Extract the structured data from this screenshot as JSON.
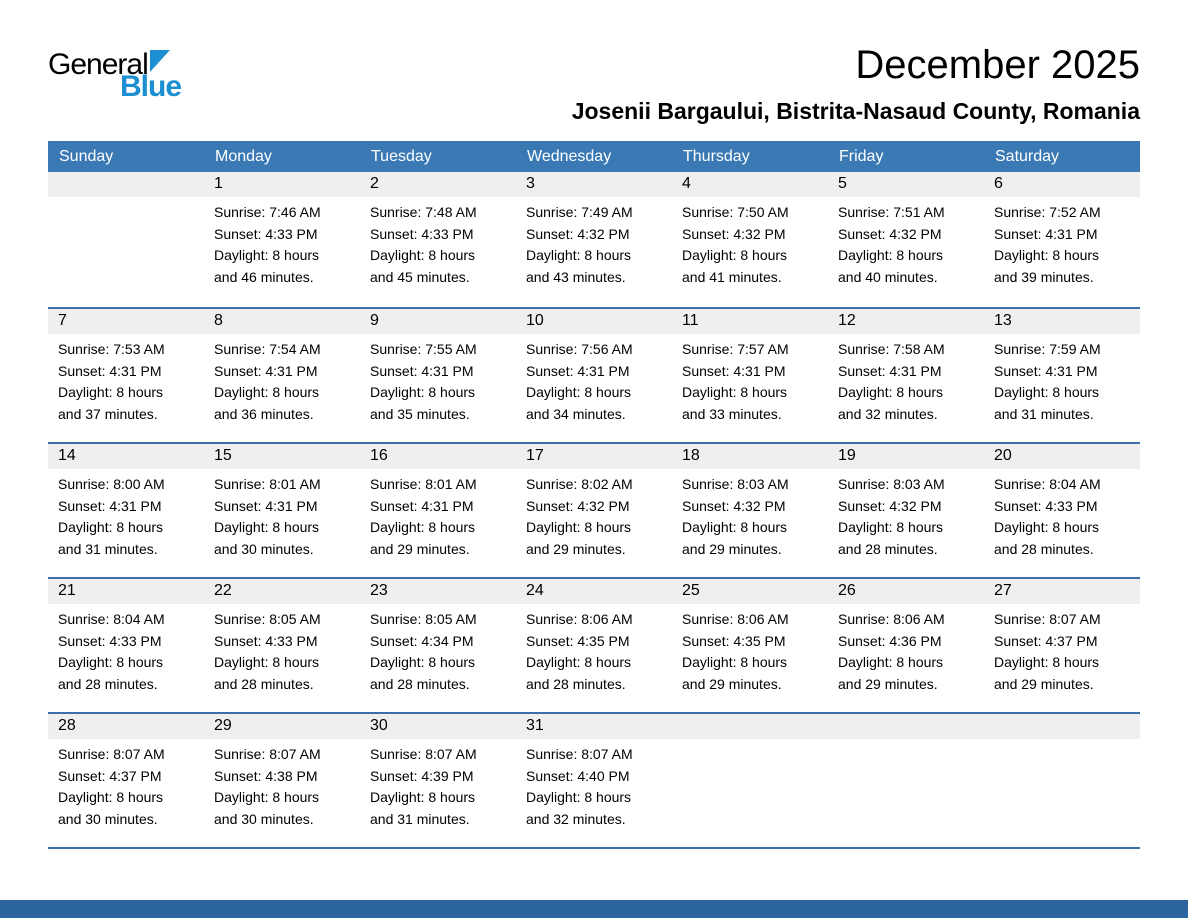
{
  "logo": {
    "general": "General",
    "blue": "Blue"
  },
  "header": {
    "month_title": "December 2025",
    "location": "Josenii Bargaului, Bistrita-Nasaud County, Romania"
  },
  "weekdays": [
    "Sunday",
    "Monday",
    "Tuesday",
    "Wednesday",
    "Thursday",
    "Friday",
    "Saturday"
  ],
  "weeks": [
    [
      {
        "day": "",
        "lines": []
      },
      {
        "day": "1",
        "lines": [
          "Sunrise: 7:46 AM",
          "Sunset: 4:33 PM",
          "Daylight: 8 hours",
          "and 46 minutes."
        ]
      },
      {
        "day": "2",
        "lines": [
          "Sunrise: 7:48 AM",
          "Sunset: 4:33 PM",
          "Daylight: 8 hours",
          "and 45 minutes."
        ]
      },
      {
        "day": "3",
        "lines": [
          "Sunrise: 7:49 AM",
          "Sunset: 4:32 PM",
          "Daylight: 8 hours",
          "and 43 minutes."
        ]
      },
      {
        "day": "4",
        "lines": [
          "Sunrise: 7:50 AM",
          "Sunset: 4:32 PM",
          "Daylight: 8 hours",
          "and 41 minutes."
        ]
      },
      {
        "day": "5",
        "lines": [
          "Sunrise: 7:51 AM",
          "Sunset: 4:32 PM",
          "Daylight: 8 hours",
          "and 40 minutes."
        ]
      },
      {
        "day": "6",
        "lines": [
          "Sunrise: 7:52 AM",
          "Sunset: 4:31 PM",
          "Daylight: 8 hours",
          "and 39 minutes."
        ]
      }
    ],
    [
      {
        "day": "7",
        "lines": [
          "Sunrise: 7:53 AM",
          "Sunset: 4:31 PM",
          "Daylight: 8 hours",
          "and 37 minutes."
        ]
      },
      {
        "day": "8",
        "lines": [
          "Sunrise: 7:54 AM",
          "Sunset: 4:31 PM",
          "Daylight: 8 hours",
          "and 36 minutes."
        ]
      },
      {
        "day": "9",
        "lines": [
          "Sunrise: 7:55 AM",
          "Sunset: 4:31 PM",
          "Daylight: 8 hours",
          "and 35 minutes."
        ]
      },
      {
        "day": "10",
        "lines": [
          "Sunrise: 7:56 AM",
          "Sunset: 4:31 PM",
          "Daylight: 8 hours",
          "and 34 minutes."
        ]
      },
      {
        "day": "11",
        "lines": [
          "Sunrise: 7:57 AM",
          "Sunset: 4:31 PM",
          "Daylight: 8 hours",
          "and 33 minutes."
        ]
      },
      {
        "day": "12",
        "lines": [
          "Sunrise: 7:58 AM",
          "Sunset: 4:31 PM",
          "Daylight: 8 hours",
          "and 32 minutes."
        ]
      },
      {
        "day": "13",
        "lines": [
          "Sunrise: 7:59 AM",
          "Sunset: 4:31 PM",
          "Daylight: 8 hours",
          "and 31 minutes."
        ]
      }
    ],
    [
      {
        "day": "14",
        "lines": [
          "Sunrise: 8:00 AM",
          "Sunset: 4:31 PM",
          "Daylight: 8 hours",
          "and 31 minutes."
        ]
      },
      {
        "day": "15",
        "lines": [
          "Sunrise: 8:01 AM",
          "Sunset: 4:31 PM",
          "Daylight: 8 hours",
          "and 30 minutes."
        ]
      },
      {
        "day": "16",
        "lines": [
          "Sunrise: 8:01 AM",
          "Sunset: 4:31 PM",
          "Daylight: 8 hours",
          "and 29 minutes."
        ]
      },
      {
        "day": "17",
        "lines": [
          "Sunrise: 8:02 AM",
          "Sunset: 4:32 PM",
          "Daylight: 8 hours",
          "and 29 minutes."
        ]
      },
      {
        "day": "18",
        "lines": [
          "Sunrise: 8:03 AM",
          "Sunset: 4:32 PM",
          "Daylight: 8 hours",
          "and 29 minutes."
        ]
      },
      {
        "day": "19",
        "lines": [
          "Sunrise: 8:03 AM",
          "Sunset: 4:32 PM",
          "Daylight: 8 hours",
          "and 28 minutes."
        ]
      },
      {
        "day": "20",
        "lines": [
          "Sunrise: 8:04 AM",
          "Sunset: 4:33 PM",
          "Daylight: 8 hours",
          "and 28 minutes."
        ]
      }
    ],
    [
      {
        "day": "21",
        "lines": [
          "Sunrise: 8:04 AM",
          "Sunset: 4:33 PM",
          "Daylight: 8 hours",
          "and 28 minutes."
        ]
      },
      {
        "day": "22",
        "lines": [
          "Sunrise: 8:05 AM",
          "Sunset: 4:33 PM",
          "Daylight: 8 hours",
          "and 28 minutes."
        ]
      },
      {
        "day": "23",
        "lines": [
          "Sunrise: 8:05 AM",
          "Sunset: 4:34 PM",
          "Daylight: 8 hours",
          "and 28 minutes."
        ]
      },
      {
        "day": "24",
        "lines": [
          "Sunrise: 8:06 AM",
          "Sunset: 4:35 PM",
          "Daylight: 8 hours",
          "and 28 minutes."
        ]
      },
      {
        "day": "25",
        "lines": [
          "Sunrise: 8:06 AM",
          "Sunset: 4:35 PM",
          "Daylight: 8 hours",
          "and 29 minutes."
        ]
      },
      {
        "day": "26",
        "lines": [
          "Sunrise: 8:06 AM",
          "Sunset: 4:36 PM",
          "Daylight: 8 hours",
          "and 29 minutes."
        ]
      },
      {
        "day": "27",
        "lines": [
          "Sunrise: 8:07 AM",
          "Sunset: 4:37 PM",
          "Daylight: 8 hours",
          "and 29 minutes."
        ]
      }
    ],
    [
      {
        "day": "28",
        "lines": [
          "Sunrise: 8:07 AM",
          "Sunset: 4:37 PM",
          "Daylight: 8 hours",
          "and 30 minutes."
        ]
      },
      {
        "day": "29",
        "lines": [
          "Sunrise: 8:07 AM",
          "Sunset: 4:38 PM",
          "Daylight: 8 hours",
          "and 30 minutes."
        ]
      },
      {
        "day": "30",
        "lines": [
          "Sunrise: 8:07 AM",
          "Sunset: 4:39 PM",
          "Daylight: 8 hours",
          "and 31 minutes."
        ]
      },
      {
        "day": "31",
        "lines": [
          "Sunrise: 8:07 AM",
          "Sunset: 4:40 PM",
          "Daylight: 8 hours",
          "and 32 minutes."
        ]
      },
      {
        "day": "",
        "lines": []
      },
      {
        "day": "",
        "lines": []
      },
      {
        "day": "",
        "lines": []
      }
    ]
  ],
  "colors": {
    "header_bg": "#3b79b5",
    "divider": "#3c6ea8",
    "band_bg": "#efefef",
    "footer_bg": "#2c64a0",
    "brand_blue": "#1b8fd1"
  }
}
